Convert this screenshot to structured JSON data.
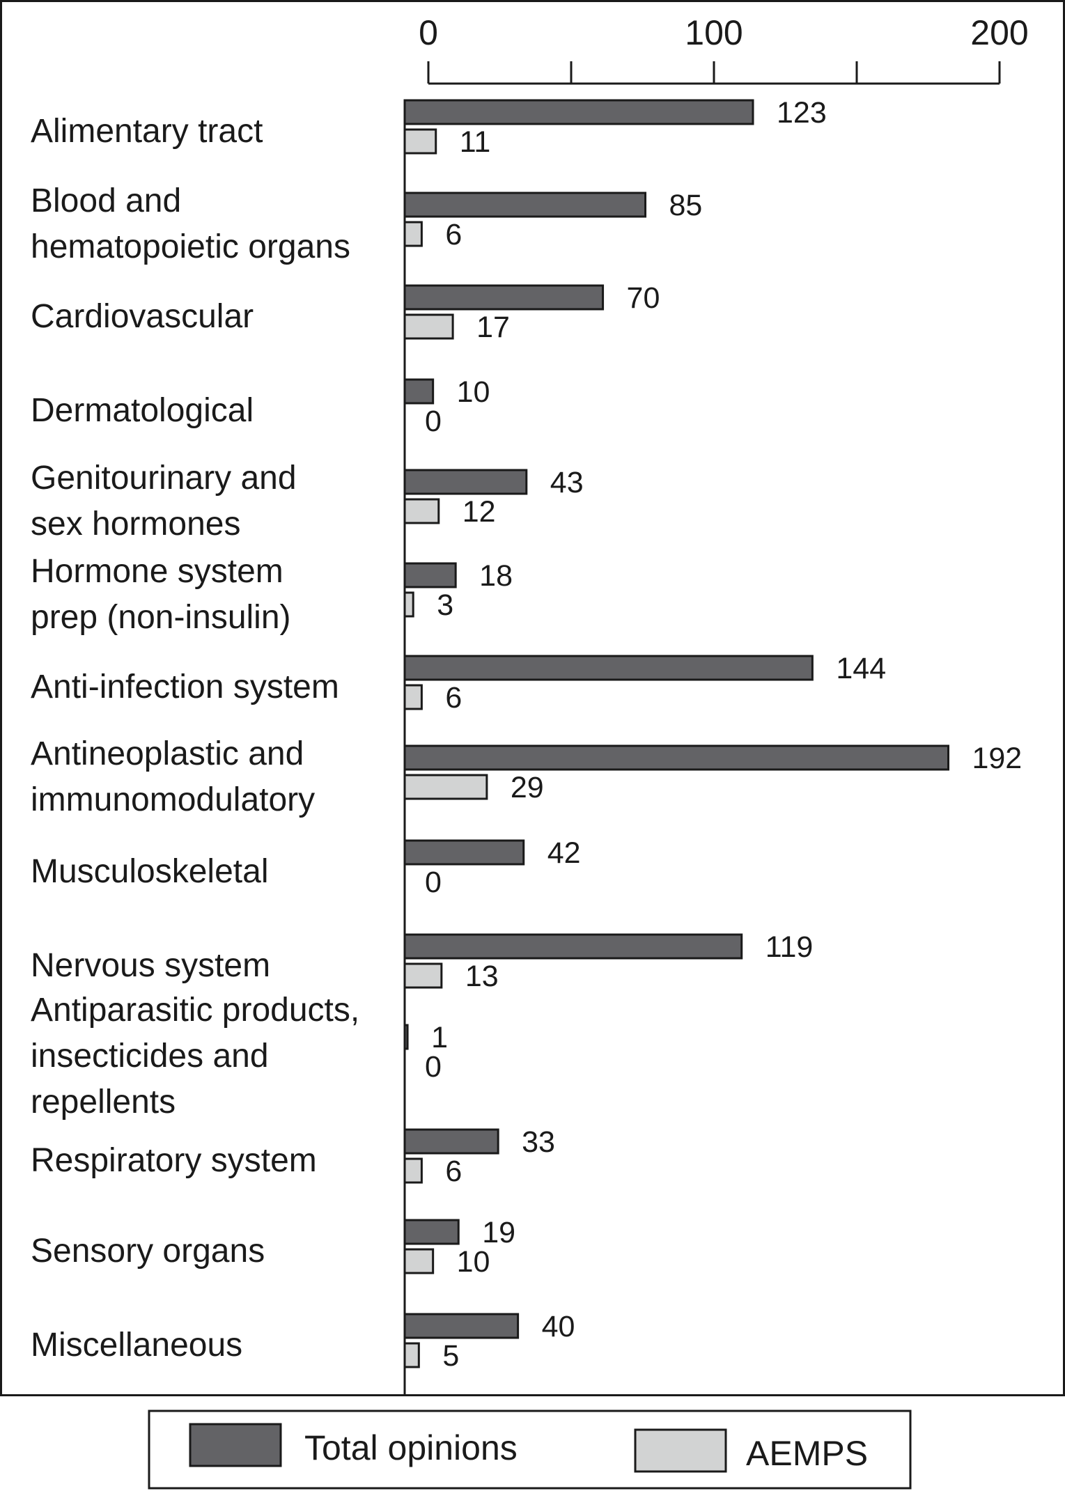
{
  "chart_data": {
    "type": "bar",
    "orientation": "horizontal",
    "xlim": [
      0,
      200
    ],
    "ticks": [
      {
        "value": 0,
        "label": "0"
      },
      {
        "value": 50,
        "label": ""
      },
      {
        "value": 100,
        "label": "100"
      },
      {
        "value": 150,
        "label": ""
      },
      {
        "value": 200,
        "label": "200"
      }
    ],
    "x_axis_position": "top",
    "categories": [
      {
        "lines": [
          "Alimentary tract"
        ]
      },
      {
        "lines": [
          "Blood and",
          "hematopoietic organs"
        ]
      },
      {
        "lines": [
          "Cardiovascular"
        ]
      },
      {
        "lines": [
          "Dermatological"
        ]
      },
      {
        "lines": [
          "Genitourinary and",
          "sex hormones"
        ]
      },
      {
        "lines": [
          "Hormone system",
          "prep (non-insulin)"
        ]
      },
      {
        "lines": [
          "Anti-infection system"
        ]
      },
      {
        "lines": [
          "Antineoplastic and",
          "immunomodulatory"
        ]
      },
      {
        "lines": [
          "Musculoskeletal"
        ]
      },
      {
        "lines": [
          "Nervous system"
        ]
      },
      {
        "lines": [
          "Antiparasitic products,",
          "insecticides and",
          "repellents"
        ]
      },
      {
        "lines": [
          "Respiratory system"
        ]
      },
      {
        "lines": [
          "Sensory organs"
        ]
      },
      {
        "lines": [
          "Miscellaneous"
        ]
      }
    ],
    "series": [
      {
        "name": "Total opinions",
        "color": "#636366",
        "values": [
          123,
          85,
          70,
          10,
          43,
          18,
          144,
          192,
          42,
          119,
          1,
          33,
          19,
          40
        ],
        "labels": [
          "123",
          "85",
          "70",
          "10",
          "43",
          "18",
          "144",
          "192",
          "42",
          "119",
          "1",
          "33",
          "19",
          "40"
        ]
      },
      {
        "name": "AEMPS",
        "color": "#d2d3d3",
        "values": [
          11,
          6,
          17,
          0,
          12,
          3,
          6,
          29,
          0,
          13,
          0,
          6,
          10,
          5
        ],
        "labels": [
          "11",
          "6",
          "17",
          "0",
          "12",
          "3",
          "6",
          "29",
          "0",
          "13",
          "0",
          "6",
          "10",
          "5"
        ]
      }
    ],
    "legend": {
      "placement": "bottom"
    },
    "grid": false
  }
}
